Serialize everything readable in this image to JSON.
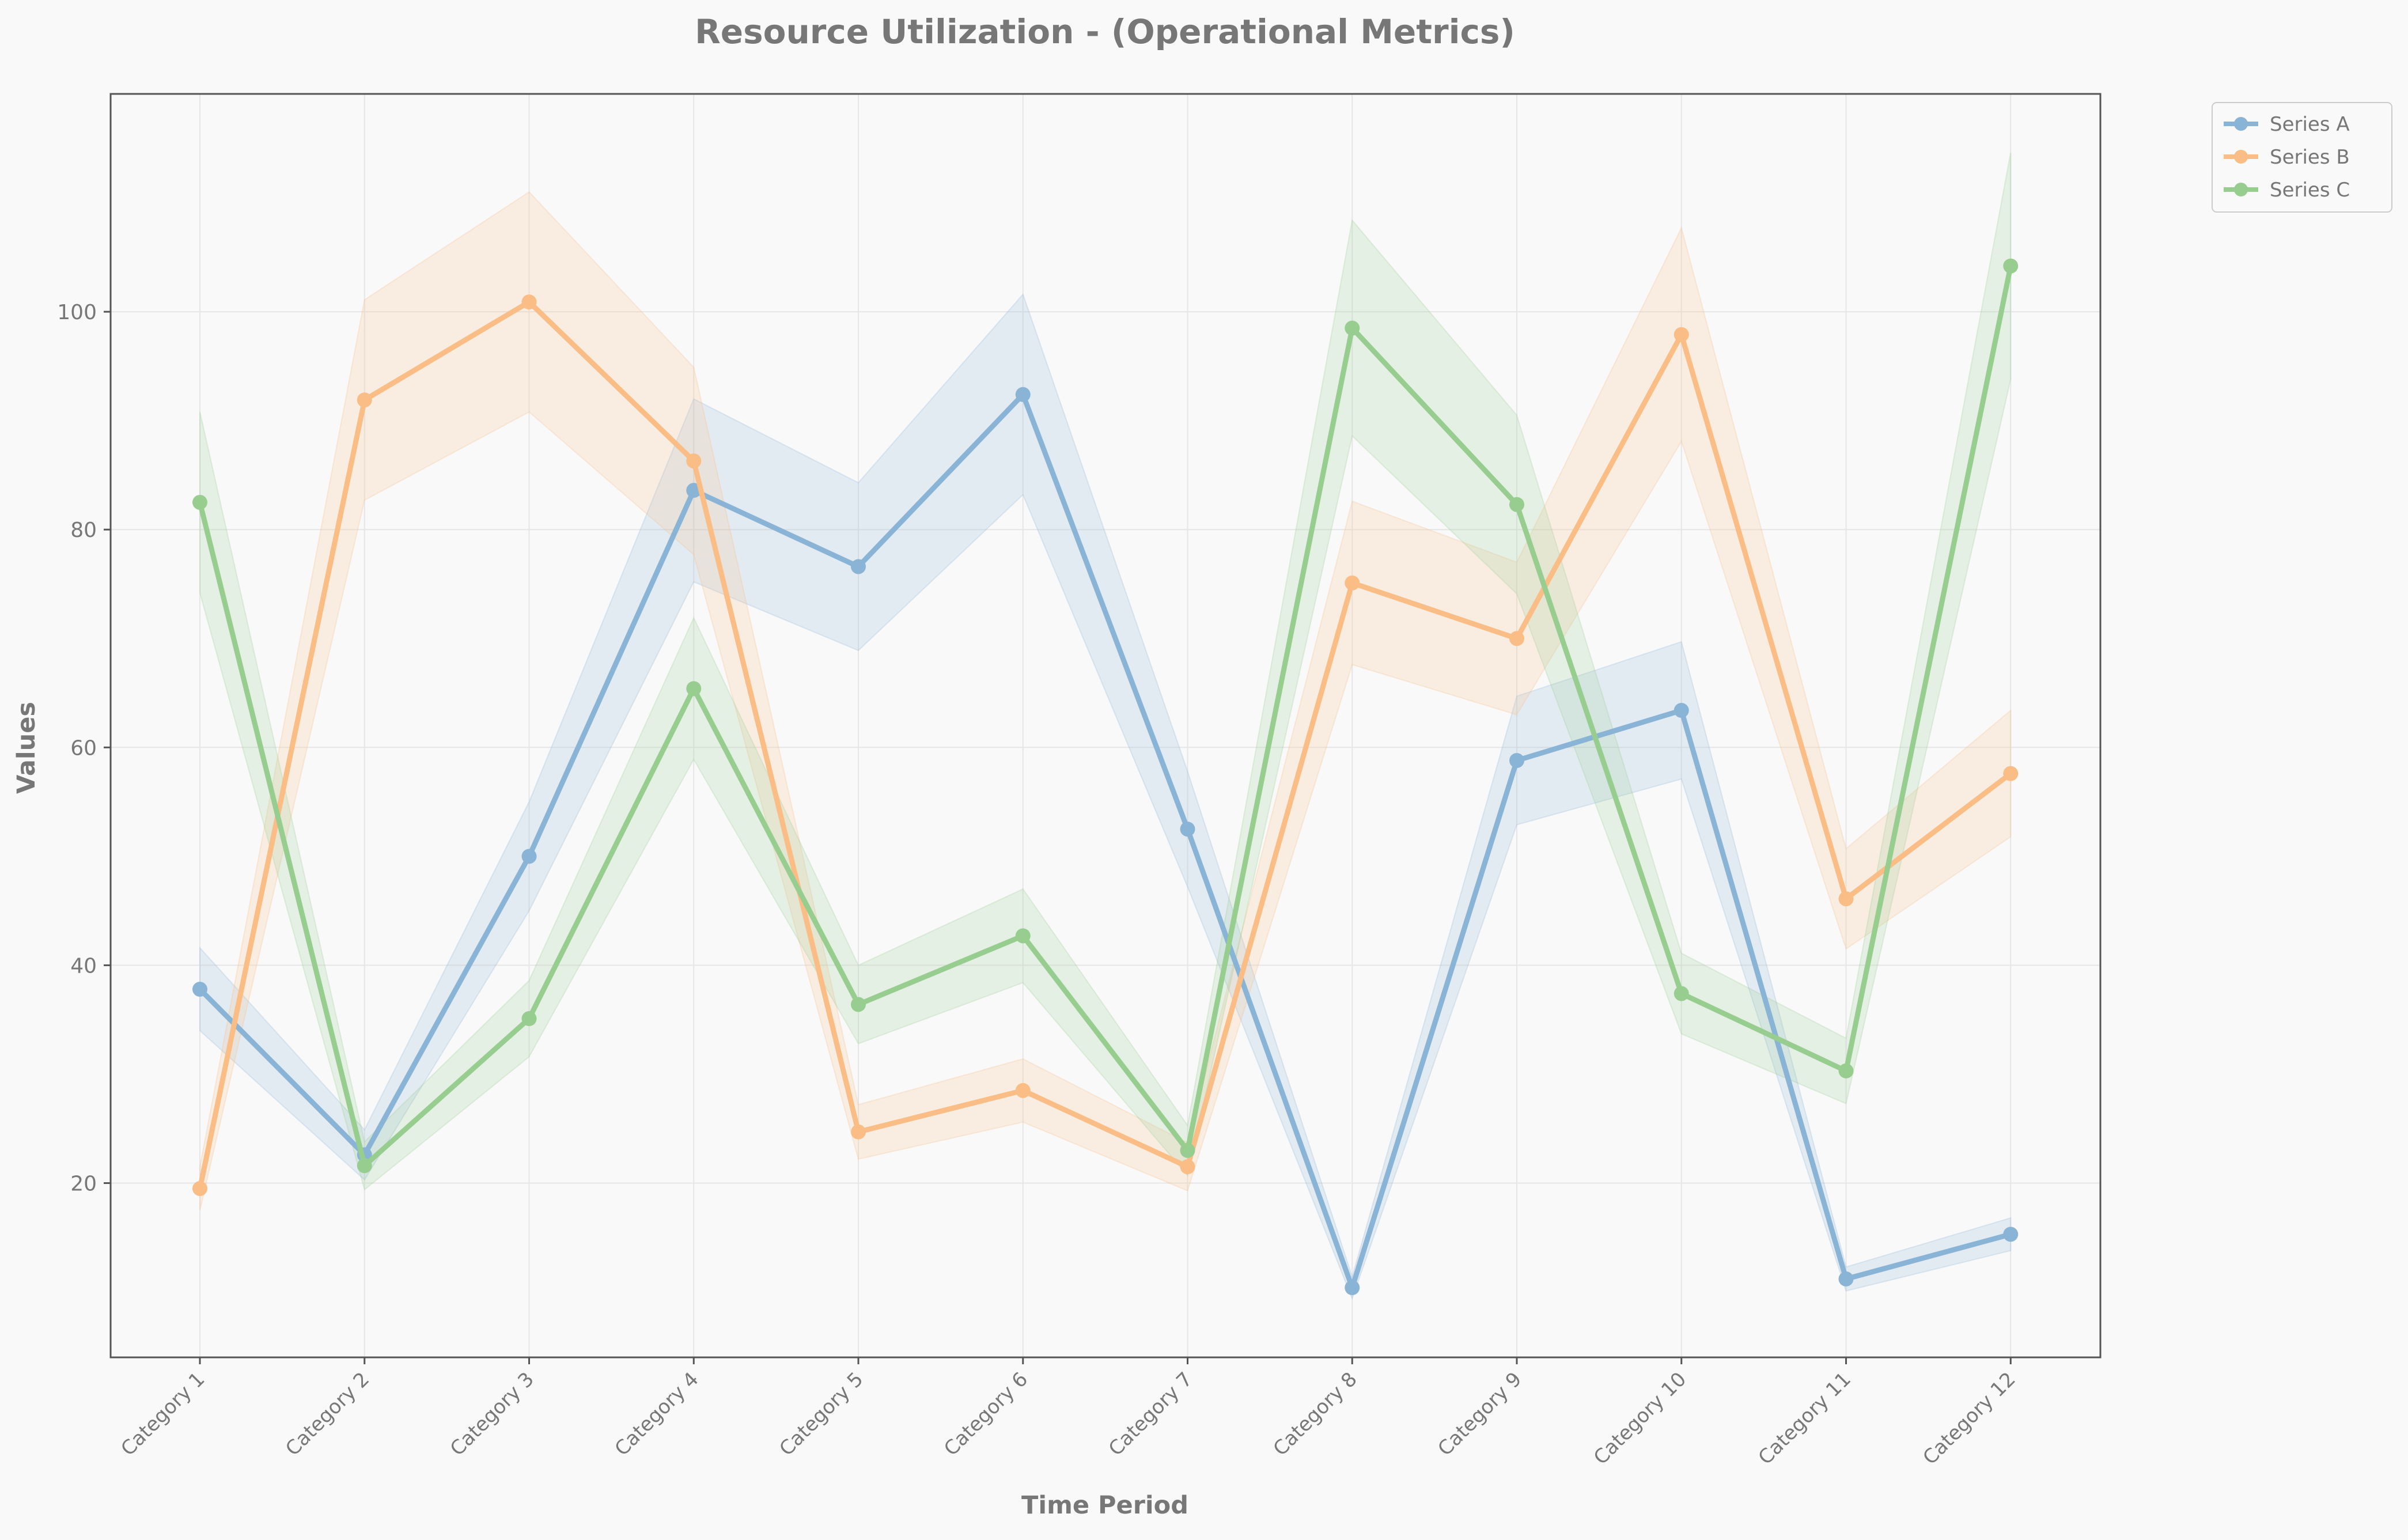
{
  "chart_data": {
    "type": "line",
    "title": "Resource Utilization - (Operational Metrics)",
    "xlabel": "Time Period",
    "ylabel": "Values",
    "categories": [
      "Category 1",
      "Category 2",
      "Category 3",
      "Category 4",
      "Category 5",
      "Category 6",
      "Category 7",
      "Category 8",
      "Category 9",
      "Category 10",
      "Category 11",
      "Category 12"
    ],
    "ylim": [
      4,
      120
    ],
    "yticks": [
      20,
      40,
      60,
      80,
      100
    ],
    "grid": true,
    "legend_position": "outside top-right",
    "series": [
      {
        "name": "Series A",
        "color": "#8ab4d6",
        "values": [
          37.8,
          22.6,
          50.0,
          83.6,
          76.6,
          92.4,
          52.5,
          10.4,
          58.8,
          63.4,
          11.2,
          15.3
        ],
        "lower": [
          34.0,
          20.3,
          45.0,
          75.2,
          68.9,
          83.2,
          47.2,
          9.4,
          52.9,
          57.1,
          10.1,
          13.8
        ],
        "upper": [
          41.6,
          24.9,
          55.0,
          92.0,
          84.3,
          101.6,
          57.8,
          11.4,
          64.7,
          69.7,
          12.3,
          16.8
        ]
      },
      {
        "name": "Series B",
        "color": "#f9bd85",
        "values": [
          19.5,
          91.9,
          100.9,
          86.3,
          24.7,
          28.5,
          21.5,
          75.1,
          70.0,
          97.9,
          46.1,
          57.6
        ],
        "lower": [
          17.5,
          82.7,
          90.8,
          77.7,
          22.2,
          25.6,
          19.3,
          67.6,
          63.0,
          88.1,
          41.5,
          51.8
        ],
        "upper": [
          21.5,
          101.1,
          111.0,
          94.9,
          27.2,
          31.4,
          23.7,
          82.6,
          77.0,
          107.7,
          50.7,
          63.4
        ]
      },
      {
        "name": "Series C",
        "color": "#98cd90",
        "values": [
          82.5,
          21.6,
          35.1,
          65.4,
          36.4,
          42.7,
          23.0,
          98.5,
          82.3,
          37.4,
          30.3,
          104.2
        ],
        "lower": [
          74.2,
          19.4,
          31.6,
          58.9,
          32.8,
          38.4,
          20.7,
          88.6,
          74.1,
          33.7,
          27.3,
          93.8
        ],
        "upper": [
          90.8,
          23.8,
          38.6,
          71.9,
          40.0,
          47.0,
          25.3,
          108.4,
          90.5,
          41.1,
          33.3,
          114.6
        ]
      }
    ]
  },
  "colors": {
    "background": "#f9f9f9",
    "axis": "#555555",
    "grid": "#e6e6e6",
    "text": "#777777"
  }
}
